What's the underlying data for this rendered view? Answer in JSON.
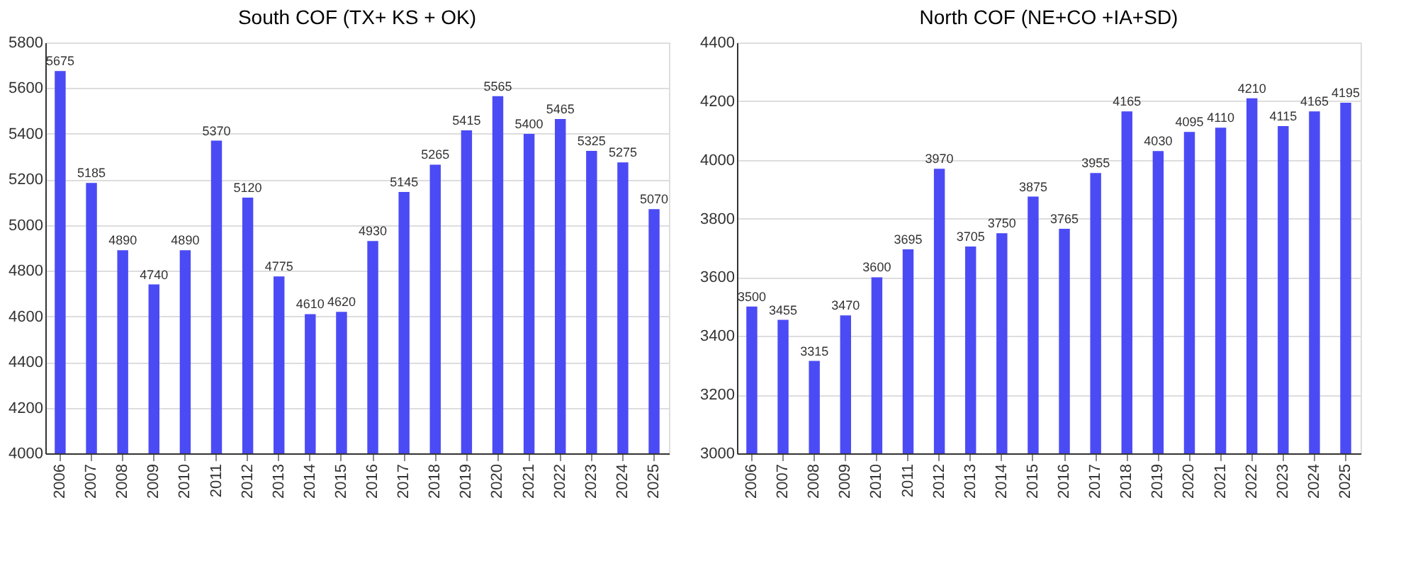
{
  "chart_data": [
    {
      "type": "bar",
      "title": "South COF (TX+ KS + OK)",
      "categories": [
        "2006",
        "2007",
        "2008",
        "2009",
        "2010",
        "2011",
        "2012",
        "2013",
        "2014",
        "2015",
        "2016",
        "2017",
        "2018",
        "2019",
        "2020",
        "2021",
        "2022",
        "2023",
        "2024",
        "2025"
      ],
      "values": [
        5675,
        5185,
        4890,
        4740,
        4890,
        5370,
        5120,
        4775,
        4610,
        4620,
        4930,
        5145,
        5265,
        5415,
        5565,
        5400,
        5465,
        5325,
        5275,
        5070
      ],
      "color": "#4b4bf5",
      "ylim": [
        4000,
        5800
      ],
      "yticks": [
        4000,
        4200,
        4400,
        4600,
        4800,
        5000,
        5200,
        5400,
        5600,
        5800
      ],
      "grid": "y",
      "data_labels": true
    },
    {
      "type": "bar",
      "title": "North COF (NE+CO +IA+SD)",
      "categories": [
        "2006",
        "2007",
        "2008",
        "2009",
        "2010",
        "2011",
        "2012",
        "2013",
        "2014",
        "2015",
        "2016",
        "2017",
        "2018",
        "2019",
        "2020",
        "2021",
        "2022",
        "2023",
        "2024",
        "2025"
      ],
      "values": [
        3500,
        3455,
        3315,
        3470,
        3600,
        3695,
        3970,
        3705,
        3750,
        3875,
        3765,
        3955,
        4165,
        4030,
        4095,
        4110,
        4210,
        4115,
        4165,
        4195
      ],
      "color": "#4b4bf5",
      "ylim": [
        3000,
        4400
      ],
      "yticks": [
        3000,
        3200,
        3400,
        3600,
        3800,
        4000,
        4200,
        4400
      ],
      "grid": "y",
      "data_labels": true
    }
  ]
}
